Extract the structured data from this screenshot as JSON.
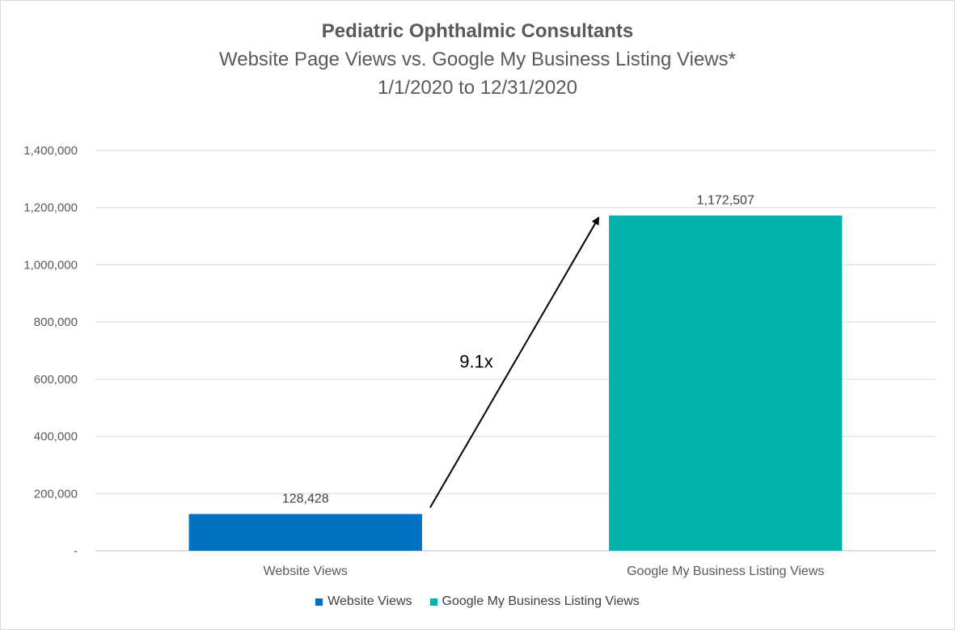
{
  "chart_data": {
    "type": "bar",
    "title": "Pediatric Ophthalmic Consultants",
    "subtitle_lines": [
      "Website Page Views vs. Google My Business Listing Views*",
      "1/1/2020 to 12/31/2020"
    ],
    "categories": [
      "Website Views",
      "Google My Business Listing Views"
    ],
    "values": [
      128428,
      1172507
    ],
    "data_labels": [
      "128,428",
      "1,172,507"
    ],
    "colors": [
      "#0070c0",
      "#00b2a9"
    ],
    "ylim": [
      0,
      1400000
    ],
    "yticks": [
      0,
      200000,
      400000,
      600000,
      800000,
      1000000,
      1200000,
      1400000
    ],
    "ytick_labels": [
      "-",
      "200,000",
      "400,000",
      "600,000",
      "800,000",
      "1,000,000",
      "1,200,000",
      "1,400,000"
    ],
    "grid": true,
    "legend": {
      "position": "bottom",
      "entries": [
        "Website Views",
        "Google My Business Listing Views"
      ]
    },
    "annotation": {
      "text": "9.1x",
      "type": "arrow",
      "from_category": "Website Views",
      "to_category": "Google My Business Listing Views"
    }
  }
}
